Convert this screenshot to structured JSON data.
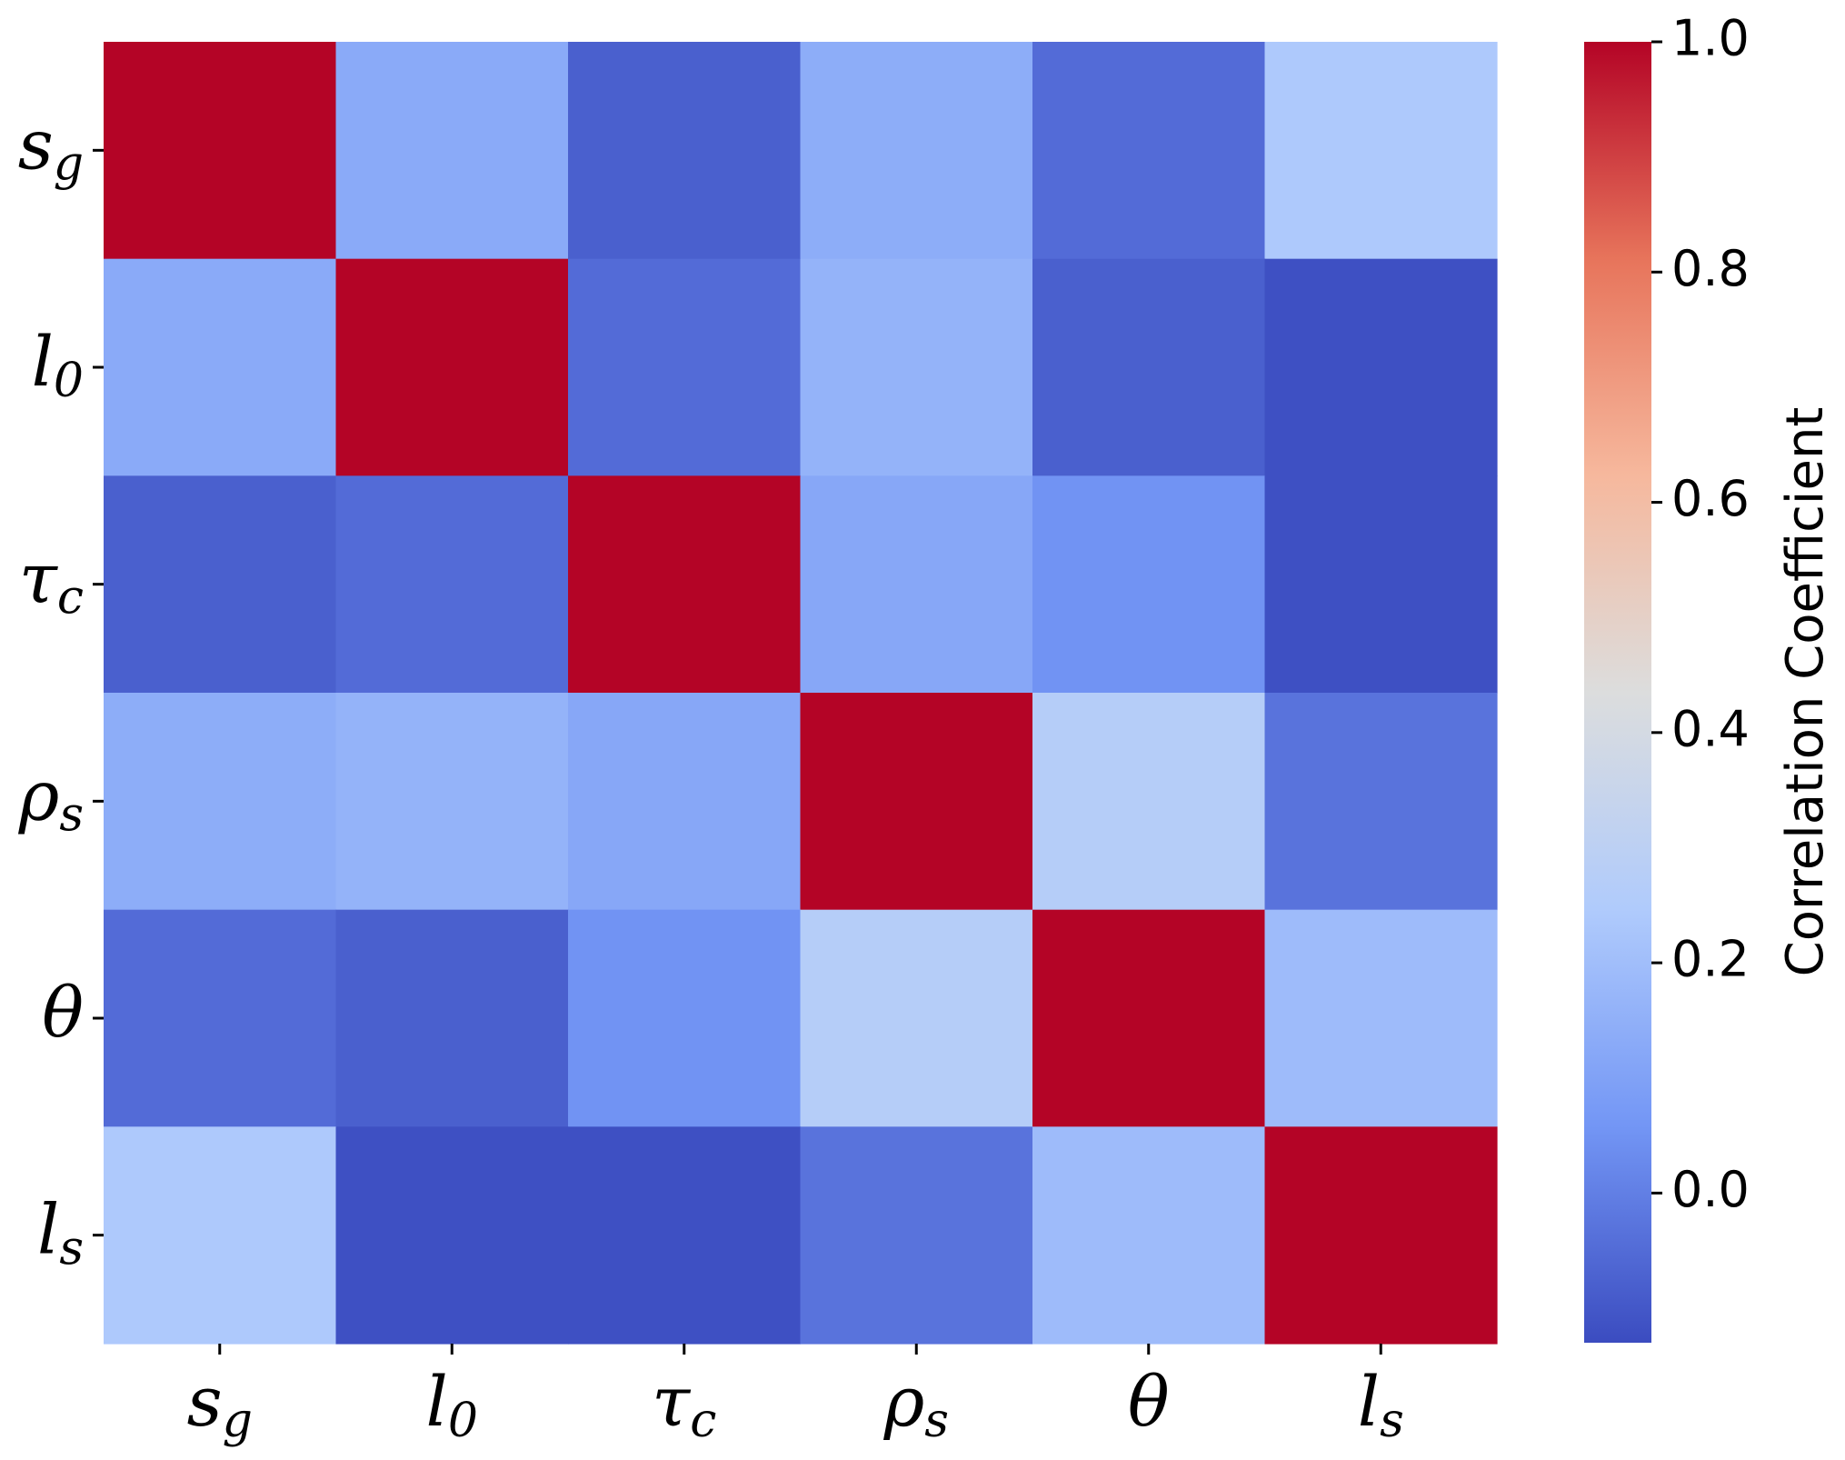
{
  "chart_data": {
    "type": "heatmap",
    "title": "",
    "xlabel": "",
    "ylabel": "",
    "categories_x": [
      {
        "base": "s",
        "sub": "g"
      },
      {
        "base": "l",
        "sub": "0"
      },
      {
        "base": "τ",
        "sub": "c"
      },
      {
        "base": "ρ",
        "sub": "s"
      },
      {
        "base": "θ",
        "sub": ""
      },
      {
        "base": "l",
        "sub": "s"
      }
    ],
    "categories_y": [
      {
        "base": "s",
        "sub": "g"
      },
      {
        "base": "l",
        "sub": "0"
      },
      {
        "base": "τ",
        "sub": "c"
      },
      {
        "base": "ρ",
        "sub": "s"
      },
      {
        "base": "θ",
        "sub": ""
      },
      {
        "base": "l",
        "sub": "s"
      }
    ],
    "values": [
      [
        1.0,
        0.13,
        -0.08,
        0.14,
        -0.05,
        0.24
      ],
      [
        0.13,
        1.0,
        -0.05,
        0.16,
        -0.08,
        -0.12
      ],
      [
        -0.08,
        -0.05,
        1.0,
        0.12,
        0.05,
        -0.12
      ],
      [
        0.14,
        0.16,
        0.12,
        1.0,
        0.27,
        -0.03
      ],
      [
        -0.05,
        -0.08,
        0.05,
        0.27,
        1.0,
        0.19
      ],
      [
        0.24,
        -0.12,
        -0.12,
        -0.03,
        0.19,
        1.0
      ]
    ],
    "colorbar": {
      "label": "Correlation Coefficient",
      "min": -0.13,
      "max": 1.0,
      "ticks": [
        0.0,
        0.2,
        0.4,
        0.6,
        0.8,
        1.0
      ],
      "tick_labels": [
        "0.0",
        "0.2",
        "0.4",
        "0.6",
        "0.8",
        "1.0"
      ],
      "colormap": "coolwarm",
      "colormap_stops": [
        "#3b4cc0",
        "#7396f5",
        "#b0cbfc",
        "#dcdddd",
        "#f6b89d",
        "#e7745b",
        "#b40426"
      ]
    },
    "grid": false,
    "legend": "right"
  }
}
